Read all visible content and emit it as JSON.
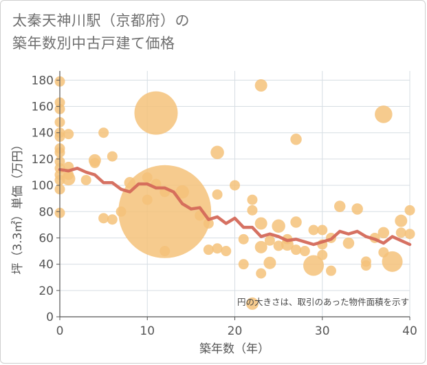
{
  "title_lines": [
    "太秦天神川駅（京都府）の",
    "築年数別中古戸建て価格"
  ],
  "note": "円の大きさは、取引のあった物件面積を示す",
  "colors": {
    "bubble": "#f5c27a",
    "line": "#d4695a",
    "grid": "#d6dde3",
    "axis": "#555555"
  },
  "chart_data": {
    "type": "scatter",
    "title": "太秦天神川駅（京都府）の築年数別中古戸建て価格",
    "xlabel": "築年数（年）",
    "ylabel": "坪（3.3㎡）単価（万円）",
    "xlim": [
      0,
      40
    ],
    "ylim": [
      0,
      187
    ],
    "xticks": [
      0,
      10,
      20,
      30,
      40
    ],
    "yticks": [
      0,
      20,
      40,
      60,
      80,
      100,
      120,
      140,
      160,
      180
    ],
    "grid": true,
    "points": [
      {
        "x": 0,
        "y": 179,
        "size": 1
      },
      {
        "x": 0,
        "y": 163,
        "size": 1
      },
      {
        "x": 0,
        "y": 158,
        "size": 1
      },
      {
        "x": 0,
        "y": 148,
        "size": 1
      },
      {
        "x": 0,
        "y": 140,
        "size": 1
      },
      {
        "x": 0,
        "y": 137,
        "size": 1
      },
      {
        "x": 0,
        "y": 128,
        "size": 1
      },
      {
        "x": 0,
        "y": 125,
        "size": 1
      },
      {
        "x": 0,
        "y": 118,
        "size": 1
      },
      {
        "x": 0,
        "y": 113,
        "size": 1
      },
      {
        "x": 0,
        "y": 108,
        "size": 1
      },
      {
        "x": 0,
        "y": 104,
        "size": 1
      },
      {
        "x": 0,
        "y": 97,
        "size": 1
      },
      {
        "x": 0,
        "y": 79,
        "size": 1
      },
      {
        "x": 1,
        "y": 139,
        "size": 1
      },
      {
        "x": 1,
        "y": 114,
        "size": 1
      },
      {
        "x": 1,
        "y": 108,
        "size": 1
      },
      {
        "x": 1,
        "y": 105,
        "size": 1.3
      },
      {
        "x": 3,
        "y": 104,
        "size": 1
      },
      {
        "x": 4,
        "y": 119,
        "size": 1.2
      },
      {
        "x": 4,
        "y": 117,
        "size": 1
      },
      {
        "x": 5,
        "y": 140,
        "size": 1
      },
      {
        "x": 5,
        "y": 75,
        "size": 1
      },
      {
        "x": 6,
        "y": 122,
        "size": 1
      },
      {
        "x": 6,
        "y": 74,
        "size": 1
      },
      {
        "x": 7,
        "y": 80,
        "size": 1
      },
      {
        "x": 8,
        "y": 102,
        "size": 1.1
      },
      {
        "x": 10,
        "y": 106,
        "size": 1
      },
      {
        "x": 10,
        "y": 89,
        "size": 1
      },
      {
        "x": 11,
        "y": 155,
        "size": 4.2
      },
      {
        "x": 11,
        "y": 101,
        "size": 1
      },
      {
        "x": 12,
        "y": 80,
        "size": 9.0
      },
      {
        "x": 12,
        "y": 95,
        "size": 1
      },
      {
        "x": 12,
        "y": 50,
        "size": 1
      },
      {
        "x": 14,
        "y": 95,
        "size": 1.3
      },
      {
        "x": 16,
        "y": 77,
        "size": 1
      },
      {
        "x": 17,
        "y": 71,
        "size": 1
      },
      {
        "x": 17,
        "y": 51,
        "size": 1
      },
      {
        "x": 18,
        "y": 125,
        "size": 1.3
      },
      {
        "x": 18,
        "y": 93,
        "size": 1
      },
      {
        "x": 18,
        "y": 52,
        "size": 1
      },
      {
        "x": 19,
        "y": 50,
        "size": 1
      },
      {
        "x": 20,
        "y": 100,
        "size": 1
      },
      {
        "x": 21,
        "y": 59,
        "size": 1
      },
      {
        "x": 21,
        "y": 40,
        "size": 1
      },
      {
        "x": 22,
        "y": 89,
        "size": 1
      },
      {
        "x": 22,
        "y": 81,
        "size": 1
      },
      {
        "x": 22,
        "y": 10,
        "size": 1.2
      },
      {
        "x": 23,
        "y": 176,
        "size": 1.2
      },
      {
        "x": 23,
        "y": 71,
        "size": 1.2
      },
      {
        "x": 23,
        "y": 53,
        "size": 1.2
      },
      {
        "x": 23,
        "y": 33,
        "size": 1
      },
      {
        "x": 24,
        "y": 58,
        "size": 1
      },
      {
        "x": 24,
        "y": 41,
        "size": 1.2
      },
      {
        "x": 25,
        "y": 69,
        "size": 1.3
      },
      {
        "x": 25,
        "y": 54,
        "size": 1
      },
      {
        "x": 26,
        "y": 59,
        "size": 1
      },
      {
        "x": 26,
        "y": 55,
        "size": 1.2
      },
      {
        "x": 27,
        "y": 135,
        "size": 1.1
      },
      {
        "x": 27,
        "y": 72,
        "size": 1.1
      },
      {
        "x": 27,
        "y": 51,
        "size": 1
      },
      {
        "x": 28,
        "y": 50,
        "size": 1
      },
      {
        "x": 29,
        "y": 66,
        "size": 1
      },
      {
        "x": 29,
        "y": 39,
        "size": 2.0
      },
      {
        "x": 30,
        "y": 66,
        "size": 1
      },
      {
        "x": 30,
        "y": 55,
        "size": 1
      },
      {
        "x": 30,
        "y": 47,
        "size": 1
      },
      {
        "x": 31,
        "y": 60,
        "size": 1
      },
      {
        "x": 31,
        "y": 35,
        "size": 1
      },
      {
        "x": 32,
        "y": 84,
        "size": 1.1
      },
      {
        "x": 33,
        "y": 56,
        "size": 1.1
      },
      {
        "x": 34,
        "y": 82,
        "size": 1.1
      },
      {
        "x": 35,
        "y": 42,
        "size": 1
      },
      {
        "x": 35,
        "y": 39,
        "size": 1
      },
      {
        "x": 36,
        "y": 60,
        "size": 1
      },
      {
        "x": 37,
        "y": 154,
        "size": 1.7
      },
      {
        "x": 37,
        "y": 64,
        "size": 1.1
      },
      {
        "x": 37,
        "y": 49,
        "size": 1
      },
      {
        "x": 38,
        "y": 42,
        "size": 2.0
      },
      {
        "x": 39,
        "y": 73,
        "size": 1.2
      },
      {
        "x": 39,
        "y": 64,
        "size": 1
      },
      {
        "x": 40,
        "y": 81,
        "size": 1
      },
      {
        "x": 40,
        "y": 63,
        "size": 1
      }
    ],
    "trend": {
      "x": [
        0,
        1,
        2,
        3,
        4,
        5,
        6,
        7,
        8,
        9,
        10,
        11,
        12,
        13,
        14,
        15,
        16,
        17,
        18,
        19,
        20,
        21,
        22,
        23,
        24,
        25,
        26,
        27,
        28,
        29,
        30,
        31,
        32,
        33,
        34,
        35,
        36,
        37,
        38,
        39,
        40
      ],
      "y": [
        112,
        111,
        113,
        110,
        108,
        102,
        102,
        97,
        95,
        101,
        101,
        98,
        98,
        95,
        86,
        82,
        83,
        74,
        76,
        71,
        75,
        68,
        68,
        61,
        63,
        61,
        58,
        59,
        57,
        55,
        57,
        59,
        65,
        63,
        65,
        61,
        59,
        56,
        61,
        58,
        55
      ]
    }
  }
}
